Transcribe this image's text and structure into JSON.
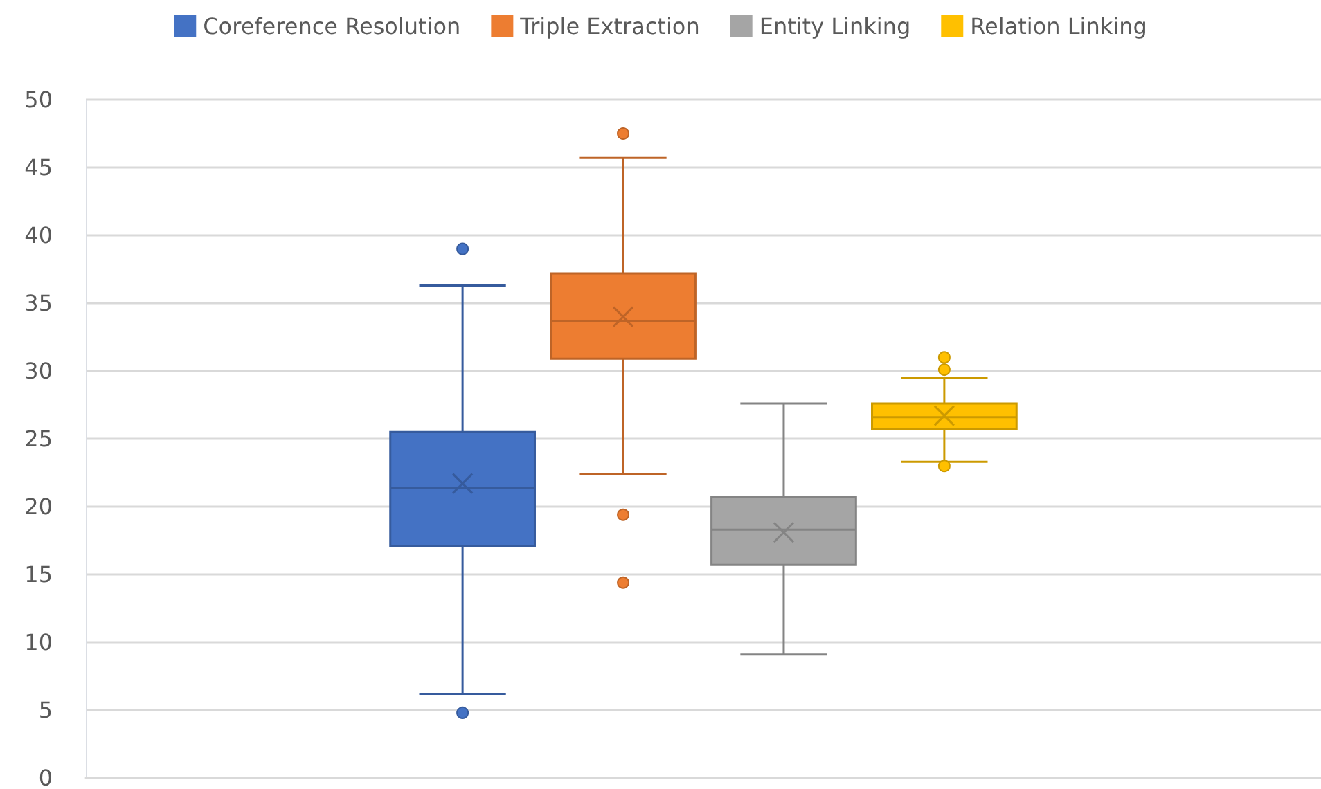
{
  "chart_data": {
    "type": "box",
    "categories": [
      null
    ],
    "series": [
      {
        "name": "Coreference Resolution",
        "color": "#4472c4",
        "boxes": [
          {
            "low": 6.2,
            "q1": 17.1,
            "median": 21.4,
            "q3": 25.5,
            "high": 36.3,
            "mean": 21.7,
            "outliers": [
              39.0,
              4.8
            ]
          }
        ]
      },
      {
        "name": "Triple Extraction",
        "color": "#ed7d31",
        "boxes": [
          {
            "low": 22.4,
            "q1": 30.9,
            "median": 33.7,
            "q3": 37.2,
            "high": 45.7,
            "mean": 34.0,
            "outliers": [
              47.5,
              19.4,
              14.4
            ]
          }
        ]
      },
      {
        "name": "Entity Linking",
        "color": "#a5a5a5",
        "boxes": [
          {
            "low": 9.1,
            "q1": 15.7,
            "median": 18.3,
            "q3": 20.7,
            "high": 27.6,
            "mean": 18.1
          }
        ]
      },
      {
        "name": "Relation Linking",
        "color": "#ffc000",
        "boxes": [
          {
            "low": 23.3,
            "q1": 25.7,
            "median": 26.6,
            "q3": 27.6,
            "high": 29.5,
            "mean": 26.7,
            "outliers": [
              31.0,
              30.1,
              23.0
            ]
          }
        ]
      }
    ],
    "ylim": [
      0,
      50
    ],
    "yticks": [
      0,
      5,
      10,
      15,
      20,
      25,
      30,
      35,
      40,
      45,
      50
    ],
    "grid": true,
    "legend": "top"
  }
}
